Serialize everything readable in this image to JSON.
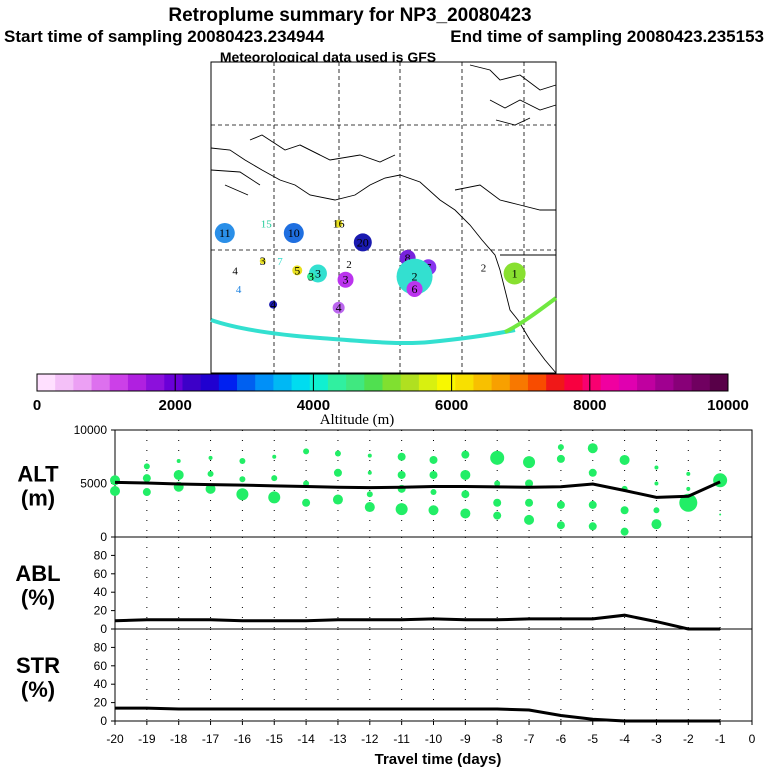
{
  "header": {
    "title": "Retroplume summary for NP3_20080423",
    "start_label": "Start time of sampling 20080423.234944",
    "end_label": "End time of sampling 20080423.235153",
    "met_label": "Meteorological data used is GFS"
  },
  "colors": {
    "trajectory": "#33e0d0",
    "trajectory_east": "#70e840",
    "alt_dots": "#22ee66",
    "line": "#000000",
    "coast": "#000000"
  },
  "map": {
    "clusters": [
      {
        "label": "11",
        "color": "#2a8fe8",
        "size": 10,
        "lon_frac": 0.04,
        "lat_frac": 0.55
      },
      {
        "label": "10",
        "color": "#1f6fe0",
        "size": 10,
        "lon_frac": 0.24,
        "lat_frac": 0.55
      },
      {
        "label": "15",
        "color": "#22cc99",
        "size": 0,
        "lon_frac": 0.16,
        "lat_frac": 0.52
      },
      {
        "label": "16",
        "color": "#e8e020",
        "size": 4,
        "lon_frac": 0.37,
        "lat_frac": 0.52
      },
      {
        "label": "20",
        "color": "#1a1ab0",
        "size": 9,
        "lon_frac": 0.44,
        "lat_frac": 0.58
      },
      {
        "label": "3",
        "color": "#e8e020",
        "size": 3,
        "lon_frac": 0.15,
        "lat_frac": 0.64
      },
      {
        "label": "7",
        "color": "#33ddcc",
        "size": 0,
        "lon_frac": 0.2,
        "lat_frac": 0.64
      },
      {
        "label": "2",
        "color": "#000000",
        "size": 0,
        "lon_frac": 0.4,
        "lat_frac": 0.65
      },
      {
        "label": "8",
        "color": "#7722dd",
        "size": 8,
        "lon_frac": 0.57,
        "lat_frac": 0.63
      },
      {
        "label": "7",
        "color": "#8833ee",
        "size": 8,
        "lon_frac": 0.63,
        "lat_frac": 0.66
      },
      {
        "label": "4",
        "color": "#000000",
        "size": 0,
        "lon_frac": 0.07,
        "lat_frac": 0.67
      },
      {
        "label": "5",
        "color": "#e8e020",
        "size": 5,
        "lon_frac": 0.25,
        "lat_frac": 0.67
      },
      {
        "label": "3",
        "color": "#33e0d0",
        "size": 9,
        "lon_frac": 0.31,
        "lat_frac": 0.68
      },
      {
        "label": "3",
        "color": "#33ee99",
        "size": 4,
        "lon_frac": 0.29,
        "lat_frac": 0.69
      },
      {
        "label": "3",
        "color": "#bb33ee",
        "size": 8,
        "lon_frac": 0.39,
        "lat_frac": 0.7
      },
      {
        "label": "2",
        "color": "#33e0d0",
        "size": 18,
        "lon_frac": 0.59,
        "lat_frac": 0.69
      },
      {
        "label": "2",
        "color": "#000000",
        "size": 0,
        "lon_frac": 0.79,
        "lat_frac": 0.66
      },
      {
        "label": "1",
        "color": "#88e030",
        "size": 11,
        "lon_frac": 0.88,
        "lat_frac": 0.68
      },
      {
        "label": "4",
        "color": "#1a80e0",
        "size": 0,
        "lon_frac": 0.08,
        "lat_frac": 0.73
      },
      {
        "label": "6",
        "color": "#bb33ee",
        "size": 8,
        "lon_frac": 0.59,
        "lat_frac": 0.73
      },
      {
        "label": "4",
        "color": "#bb66ee",
        "size": 6,
        "lon_frac": 0.37,
        "lat_frac": 0.79
      },
      {
        "label": "4",
        "color": "#1a1ab0",
        "size": 4,
        "lon_frac": 0.18,
        "lat_frac": 0.78
      }
    ]
  },
  "colorbar": {
    "colors": [
      "#ffe0ff",
      "#f4c0f8",
      "#eca0f4",
      "#dd70ee",
      "#cc40e8",
      "#b020e0",
      "#8c10dc",
      "#6a00d8",
      "#3d00c8",
      "#2000d0",
      "#0020f0",
      "#0060f0",
      "#0090f8",
      "#00b8f4",
      "#00dcf0",
      "#10f0d0",
      "#30f0a0",
      "#40e880",
      "#50e050",
      "#80e030",
      "#b0e020",
      "#d8f010",
      "#f8f800",
      "#f8e000",
      "#f8c000",
      "#f8a000",
      "#f87800",
      "#f84c00",
      "#f01818",
      "#f80040",
      "#f80070",
      "#f000a0",
      "#e000b0",
      "#c000a0",
      "#a00090",
      "#880078",
      "#700060",
      "#580048"
    ],
    "ticks": [
      "0",
      "2000",
      "4000",
      "6000",
      "8000",
      "10000"
    ],
    "label": "Altitude (m)",
    "range": [
      0,
      10000
    ]
  },
  "chart_data": [
    {
      "type": "line",
      "title": "ALT",
      "ylabel": "ALT (m)",
      "ylabel_top": "ALT",
      "ylabel_unit": "(m)",
      "xlim": [
        -20,
        0
      ],
      "ylim": [
        0,
        10000
      ],
      "yticks": [
        "0",
        "5000",
        "10000"
      ],
      "x": [
        -20,
        -19,
        -18,
        -17,
        -16,
        -15,
        -14,
        -13,
        -12,
        -11,
        -10,
        -9,
        -8,
        -7,
        -6,
        -5,
        -4,
        -3,
        -2,
        -1
      ],
      "y": [
        5100,
        5050,
        4950,
        4900,
        4850,
        4780,
        4720,
        4650,
        4620,
        4650,
        4720,
        4720,
        4680,
        4650,
        4700,
        4950,
        4350,
        3700,
        3800,
        5150
      ],
      "scatter": [
        {
          "x": -20,
          "y": 5300,
          "size": 5
        },
        {
          "x": -20,
          "y": 4300,
          "size": 5
        },
        {
          "x": -19,
          "y": 6600,
          "size": 3
        },
        {
          "x": -19,
          "y": 5500,
          "size": 4
        },
        {
          "x": -19,
          "y": 4200,
          "size": 4
        },
        {
          "x": -18,
          "y": 7100,
          "size": 2
        },
        {
          "x": -18,
          "y": 5800,
          "size": 5
        },
        {
          "x": -18,
          "y": 4700,
          "size": 5
        },
        {
          "x": -17,
          "y": 7400,
          "size": 2
        },
        {
          "x": -17,
          "y": 5900,
          "size": 3
        },
        {
          "x": -17,
          "y": 4500,
          "size": 5
        },
        {
          "x": -16,
          "y": 7100,
          "size": 3
        },
        {
          "x": -16,
          "y": 5400,
          "size": 3
        },
        {
          "x": -16,
          "y": 4000,
          "size": 6
        },
        {
          "x": -15,
          "y": 7500,
          "size": 2
        },
        {
          "x": -15,
          "y": 5500,
          "size": 3
        },
        {
          "x": -15,
          "y": 3700,
          "size": 6
        },
        {
          "x": -14,
          "y": 8000,
          "size": 3
        },
        {
          "x": -14,
          "y": 5000,
          "size": 3
        },
        {
          "x": -14,
          "y": 3200,
          "size": 4
        },
        {
          "x": -13,
          "y": 7800,
          "size": 3
        },
        {
          "x": -13,
          "y": 6000,
          "size": 4
        },
        {
          "x": -13,
          "y": 3500,
          "size": 5
        },
        {
          "x": -12,
          "y": 7600,
          "size": 2
        },
        {
          "x": -12,
          "y": 6000,
          "size": 2
        },
        {
          "x": -12,
          "y": 4000,
          "size": 3
        },
        {
          "x": -12,
          "y": 2800,
          "size": 5
        },
        {
          "x": -11,
          "y": 7500,
          "size": 4
        },
        {
          "x": -11,
          "y": 5800,
          "size": 4
        },
        {
          "x": -11,
          "y": 4500,
          "size": 4
        },
        {
          "x": -11,
          "y": 2600,
          "size": 6
        },
        {
          "x": -10,
          "y": 7200,
          "size": 4
        },
        {
          "x": -10,
          "y": 5800,
          "size": 4
        },
        {
          "x": -10,
          "y": 4200,
          "size": 3
        },
        {
          "x": -10,
          "y": 2500,
          "size": 5
        },
        {
          "x": -9,
          "y": 7700,
          "size": 4
        },
        {
          "x": -9,
          "y": 5800,
          "size": 5
        },
        {
          "x": -9,
          "y": 4000,
          "size": 4
        },
        {
          "x": -9,
          "y": 2200,
          "size": 5
        },
        {
          "x": -8,
          "y": 7400,
          "size": 7
        },
        {
          "x": -8,
          "y": 5000,
          "size": 3
        },
        {
          "x": -8,
          "y": 3200,
          "size": 4
        },
        {
          "x": -8,
          "y": 2000,
          "size": 4
        },
        {
          "x": -7,
          "y": 7000,
          "size": 6
        },
        {
          "x": -7,
          "y": 5000,
          "size": 4
        },
        {
          "x": -7,
          "y": 3200,
          "size": 4
        },
        {
          "x": -7,
          "y": 1600,
          "size": 5
        },
        {
          "x": -6,
          "y": 8400,
          "size": 3
        },
        {
          "x": -6,
          "y": 7300,
          "size": 4
        },
        {
          "x": -6,
          "y": 3000,
          "size": 4
        },
        {
          "x": -6,
          "y": 1100,
          "size": 4
        },
        {
          "x": -5,
          "y": 8300,
          "size": 5
        },
        {
          "x": -5,
          "y": 6000,
          "size": 4
        },
        {
          "x": -5,
          "y": 3000,
          "size": 4
        },
        {
          "x": -5,
          "y": 1000,
          "size": 4
        },
        {
          "x": -4,
          "y": 7200,
          "size": 5
        },
        {
          "x": -4,
          "y": 4500,
          "size": 3
        },
        {
          "x": -4,
          "y": 2500,
          "size": 4
        },
        {
          "x": -4,
          "y": 500,
          "size": 4
        },
        {
          "x": -3,
          "y": 6500,
          "size": 2
        },
        {
          "x": -3,
          "y": 5000,
          "size": 2
        },
        {
          "x": -3,
          "y": 2500,
          "size": 3
        },
        {
          "x": -3,
          "y": 1200,
          "size": 5
        },
        {
          "x": -2,
          "y": 5900,
          "size": 2
        },
        {
          "x": -2,
          "y": 4500,
          "size": 2
        },
        {
          "x": -2,
          "y": 3200,
          "size": 9
        },
        {
          "x": -1,
          "y": 5300,
          "size": 7
        },
        {
          "x": -1,
          "y": 2100,
          "size": 1
        }
      ]
    },
    {
      "type": "line",
      "title": "ABL",
      "ylabel": "ABL (%)",
      "ylabel_top": "ABL",
      "ylabel_unit": "(%)",
      "xlim": [
        -20,
        0
      ],
      "ylim": [
        0,
        100
      ],
      "yticks": [
        "0",
        "20",
        "40",
        "60",
        "80"
      ],
      "x": [
        -20,
        -19,
        -18,
        -17,
        -16,
        -15,
        -14,
        -13,
        -12,
        -11,
        -10,
        -9,
        -8,
        -7,
        -6,
        -5,
        -4,
        -3,
        -2,
        -1
      ],
      "y": [
        9,
        10,
        10,
        10,
        9,
        9,
        9,
        10,
        10,
        10,
        11,
        10,
        10,
        11,
        11,
        11,
        15,
        8,
        0,
        0
      ]
    },
    {
      "type": "line",
      "title": "STR",
      "ylabel": "STR (%)",
      "ylabel_top": "STR",
      "ylabel_unit": "(%)",
      "xlim": [
        -20,
        0
      ],
      "ylim": [
        0,
        100
      ],
      "yticks": [
        "0",
        "20",
        "40",
        "60",
        "80"
      ],
      "x": [
        -20,
        -19,
        -18,
        -17,
        -16,
        -15,
        -14,
        -13,
        -12,
        -11,
        -10,
        -9,
        -8,
        -7,
        -6,
        -5,
        -4,
        -3,
        -2,
        -1
      ],
      "y": [
        14,
        14,
        13,
        13,
        13,
        13,
        13,
        13,
        13,
        13,
        13,
        13,
        13,
        12,
        6,
        2,
        0,
        0,
        0,
        0
      ]
    }
  ],
  "x_axis": {
    "ticks": [
      "-20",
      "-19",
      "-18",
      "-17",
      "-16",
      "-15",
      "-14",
      "-13",
      "-12",
      "-11",
      "-10",
      "-9",
      "-8",
      "-7",
      "-6",
      "-5",
      "-4",
      "-3",
      "-2",
      "-1",
      "0"
    ],
    "label": "Travel time (days)"
  }
}
